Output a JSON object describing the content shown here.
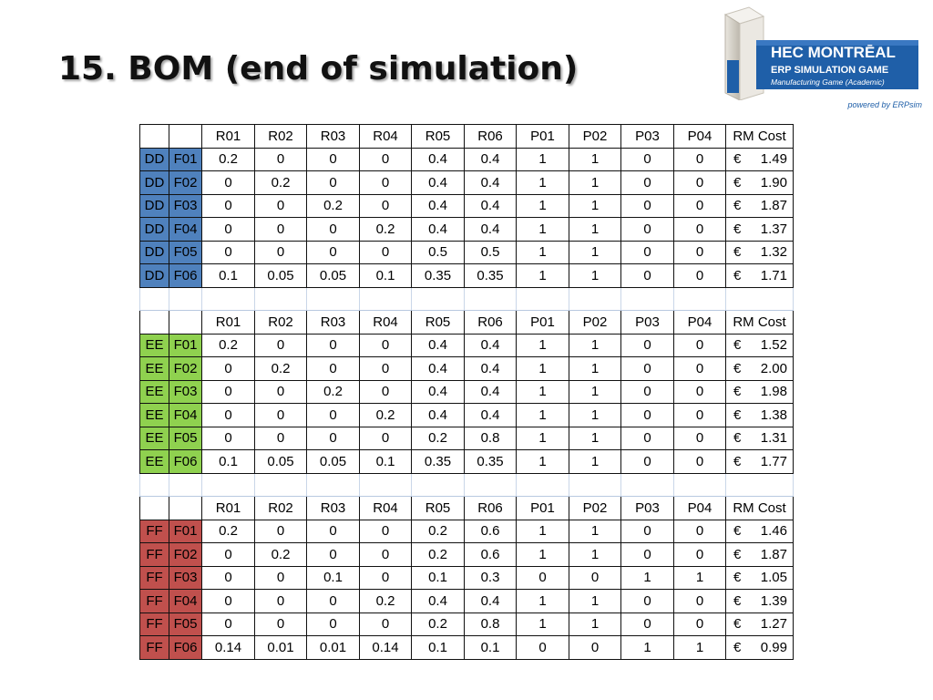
{
  "slide": {
    "title": "15. BOM (end of simulation)"
  },
  "logo": {
    "line1": "HEC MONTRĒAL",
    "line2": "ERP SIMULATION GAME",
    "line3": "Manufacturing Game (Academic)",
    "powered_by": "powered by ERPsim",
    "colors": {
      "brand_blue": "#1f5fa8",
      "dark_blue": "#123f7a"
    }
  },
  "bom": {
    "headers": [
      "R01",
      "R02",
      "R03",
      "R04",
      "R05",
      "R06",
      "P01",
      "P02",
      "P03",
      "P04",
      "RM Cost"
    ],
    "currency": "€",
    "groups": [
      {
        "company": "DD",
        "color": "#4f81bd",
        "rows": [
          {
            "product": "F01",
            "values": [
              "0.2",
              "0",
              "0",
              "0",
              "0.4",
              "0.4",
              "1",
              "1",
              "0",
              "0"
            ],
            "cost": "1.49"
          },
          {
            "product": "F02",
            "values": [
              "0",
              "0.2",
              "0",
              "0",
              "0.4",
              "0.4",
              "1",
              "1",
              "0",
              "0"
            ],
            "cost": "1.90"
          },
          {
            "product": "F03",
            "values": [
              "0",
              "0",
              "0.2",
              "0",
              "0.4",
              "0.4",
              "1",
              "1",
              "0",
              "0"
            ],
            "cost": "1.87"
          },
          {
            "product": "F04",
            "values": [
              "0",
              "0",
              "0",
              "0.2",
              "0.4",
              "0.4",
              "1",
              "1",
              "0",
              "0"
            ],
            "cost": "1.37"
          },
          {
            "product": "F05",
            "values": [
              "0",
              "0",
              "0",
              "0",
              "0.5",
              "0.5",
              "1",
              "1",
              "0",
              "0"
            ],
            "cost": "1.32"
          },
          {
            "product": "F06",
            "values": [
              "0.1",
              "0.05",
              "0.05",
              "0.1",
              "0.35",
              "0.35",
              "1",
              "1",
              "0",
              "0"
            ],
            "cost": "1.71"
          }
        ]
      },
      {
        "company": "EE",
        "color": "#8fd14f",
        "rows": [
          {
            "product": "F01",
            "values": [
              "0.2",
              "0",
              "0",
              "0",
              "0.4",
              "0.4",
              "1",
              "1",
              "0",
              "0"
            ],
            "cost": "1.52"
          },
          {
            "product": "F02",
            "values": [
              "0",
              "0.2",
              "0",
              "0",
              "0.4",
              "0.4",
              "1",
              "1",
              "0",
              "0"
            ],
            "cost": "2.00"
          },
          {
            "product": "F03",
            "values": [
              "0",
              "0",
              "0.2",
              "0",
              "0.4",
              "0.4",
              "1",
              "1",
              "0",
              "0"
            ],
            "cost": "1.98"
          },
          {
            "product": "F04",
            "values": [
              "0",
              "0",
              "0",
              "0.2",
              "0.4",
              "0.4",
              "1",
              "1",
              "0",
              "0"
            ],
            "cost": "1.38"
          },
          {
            "product": "F05",
            "values": [
              "0",
              "0",
              "0",
              "0",
              "0.2",
              "0.8",
              "1",
              "1",
              "0",
              "0"
            ],
            "cost": "1.31"
          },
          {
            "product": "F06",
            "values": [
              "0.1",
              "0.05",
              "0.05",
              "0.1",
              "0.35",
              "0.35",
              "1",
              "1",
              "0",
              "0"
            ],
            "cost": "1.77"
          }
        ]
      },
      {
        "company": "FF",
        "color": "#c0504d",
        "rows": [
          {
            "product": "F01",
            "values": [
              "0.2",
              "0",
              "0",
              "0",
              "0.2",
              "0.6",
              "1",
              "1",
              "0",
              "0"
            ],
            "cost": "1.46"
          },
          {
            "product": "F02",
            "values": [
              "0",
              "0.2",
              "0",
              "0",
              "0.2",
              "0.6",
              "1",
              "1",
              "0",
              "0"
            ],
            "cost": "1.87"
          },
          {
            "product": "F03",
            "values": [
              "0",
              "0",
              "0.1",
              "0",
              "0.1",
              "0.3",
              "0",
              "0",
              "1",
              "1"
            ],
            "cost": "1.05"
          },
          {
            "product": "F04",
            "values": [
              "0",
              "0",
              "0",
              "0.2",
              "0.4",
              "0.4",
              "1",
              "1",
              "0",
              "0"
            ],
            "cost": "1.39"
          },
          {
            "product": "F05",
            "values": [
              "0",
              "0",
              "0",
              "0",
              "0.2",
              "0.8",
              "1",
              "1",
              "0",
              "0"
            ],
            "cost": "1.27"
          },
          {
            "product": "F06",
            "values": [
              "0.14",
              "0.01",
              "0.01",
              "0.14",
              "0.1",
              "0.1",
              "0",
              "0",
              "1",
              "1"
            ],
            "cost": "0.99"
          }
        ]
      }
    ]
  }
}
